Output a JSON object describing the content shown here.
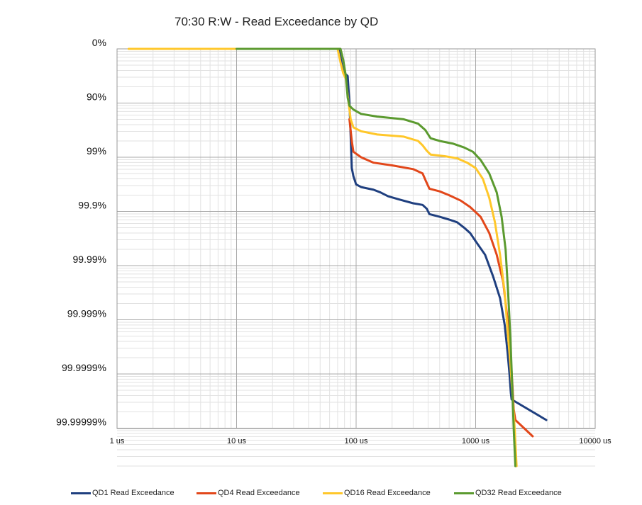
{
  "chart_data": {
    "type": "line",
    "title": "70:30 R:W - Read Exceedance by QD",
    "x_scale": "log",
    "xlim": [
      1,
      10000
    ],
    "x_ticks": [
      1,
      10,
      100,
      1000,
      10000
    ],
    "x_tick_labels": [
      "1 us",
      "10 us",
      "100 us",
      "1000 us",
      "10000 us"
    ],
    "y_scale": "nines",
    "ylim": [
      0,
      7.7
    ],
    "y_ticks": [
      0,
      1,
      2,
      3,
      4,
      5,
      6,
      7
    ],
    "y_tick_labels": [
      "0%",
      "90%",
      "99%",
      "99.9%",
      "99.99%",
      "99.999%",
      "99.9999%",
      "99.99999%"
    ],
    "grid": true,
    "legend_position": "bottom",
    "series": [
      {
        "name": "QD1 Read Exceedance",
        "color": "#1f3f7f",
        "points": [
          [
            66,
            0
          ],
          [
            72,
            0
          ],
          [
            76,
            0.3
          ],
          [
            80,
            0.45
          ],
          [
            85,
            0.5
          ],
          [
            88,
            1.0
          ],
          [
            90,
            1.6
          ],
          [
            92,
            2.2
          ],
          [
            95,
            2.35
          ],
          [
            100,
            2.5
          ],
          [
            110,
            2.55
          ],
          [
            140,
            2.6
          ],
          [
            160,
            2.65
          ],
          [
            185,
            2.72
          ],
          [
            230,
            2.78
          ],
          [
            300,
            2.85
          ],
          [
            360,
            2.88
          ],
          [
            390,
            2.95
          ],
          [
            410,
            3.05
          ],
          [
            500,
            3.1
          ],
          [
            600,
            3.15
          ],
          [
            700,
            3.2
          ],
          [
            800,
            3.3
          ],
          [
            900,
            3.4
          ],
          [
            1000,
            3.55
          ],
          [
            1200,
            3.8
          ],
          [
            1400,
            4.2
          ],
          [
            1600,
            4.6
          ],
          [
            1750,
            5.1
          ],
          [
            1850,
            5.6
          ],
          [
            1920,
            6.0
          ],
          [
            1970,
            6.35
          ],
          [
            2000,
            6.47
          ],
          [
            3900,
            6.85
          ]
        ]
      },
      {
        "name": "QD4 Read Exceedance",
        "color": "#e2471a",
        "points": [
          [
            88,
            1.3
          ],
          [
            92,
            1.7
          ],
          [
            95,
            1.9
          ],
          [
            110,
            2.0
          ],
          [
            140,
            2.1
          ],
          [
            200,
            2.15
          ],
          [
            300,
            2.22
          ],
          [
            360,
            2.3
          ],
          [
            385,
            2.45
          ],
          [
            410,
            2.58
          ],
          [
            500,
            2.63
          ],
          [
            600,
            2.7
          ],
          [
            750,
            2.8
          ],
          [
            900,
            2.92
          ],
          [
            1100,
            3.1
          ],
          [
            1300,
            3.4
          ],
          [
            1500,
            3.8
          ],
          [
            1700,
            4.3
          ],
          [
            1850,
            5.0
          ],
          [
            1950,
            5.6
          ],
          [
            2030,
            6.2
          ],
          [
            2080,
            6.65
          ],
          [
            2150,
            6.85
          ],
          [
            3000,
            7.15
          ]
        ]
      },
      {
        "name": "QD16 Read Exceedance",
        "color": "#ffc72a",
        "points": [
          [
            1.25,
            0
          ],
          [
            2,
            0
          ],
          [
            5,
            0
          ],
          [
            10,
            0
          ],
          [
            30,
            0
          ],
          [
            66,
            0
          ],
          [
            70,
            0
          ],
          [
            74,
            0.25
          ],
          [
            78,
            0.45
          ],
          [
            82,
            0.55
          ],
          [
            85,
            0.85
          ],
          [
            90,
            1.3
          ],
          [
            95,
            1.45
          ],
          [
            110,
            1.52
          ],
          [
            150,
            1.58
          ],
          [
            250,
            1.62
          ],
          [
            330,
            1.7
          ],
          [
            360,
            1.78
          ],
          [
            390,
            1.88
          ],
          [
            420,
            1.95
          ],
          [
            550,
            1.98
          ],
          [
            700,
            2.02
          ],
          [
            850,
            2.1
          ],
          [
            1000,
            2.2
          ],
          [
            1150,
            2.4
          ],
          [
            1300,
            2.75
          ],
          [
            1450,
            3.2
          ],
          [
            1600,
            3.8
          ],
          [
            1750,
            4.5
          ],
          [
            1850,
            5.2
          ],
          [
            1950,
            5.8
          ],
          [
            2050,
            6.5
          ],
          [
            2120,
            7.0
          ],
          [
            2200,
            7.7
          ]
        ]
      },
      {
        "name": "QD32 Read Exceedance",
        "color": "#5b9a2f",
        "points": [
          [
            10,
            0
          ],
          [
            30,
            0
          ],
          [
            66,
            0
          ],
          [
            74,
            0
          ],
          [
            78,
            0.2
          ],
          [
            82,
            0.5
          ],
          [
            85,
            0.9
          ],
          [
            88,
            1.05
          ],
          [
            95,
            1.12
          ],
          [
            110,
            1.2
          ],
          [
            150,
            1.25
          ],
          [
            250,
            1.3
          ],
          [
            330,
            1.38
          ],
          [
            380,
            1.5
          ],
          [
            420,
            1.65
          ],
          [
            500,
            1.7
          ],
          [
            650,
            1.75
          ],
          [
            800,
            1.82
          ],
          [
            950,
            1.9
          ],
          [
            1100,
            2.05
          ],
          [
            1300,
            2.3
          ],
          [
            1500,
            2.65
          ],
          [
            1650,
            3.1
          ],
          [
            1780,
            3.7
          ],
          [
            1870,
            4.5
          ],
          [
            1950,
            5.3
          ],
          [
            2020,
            6.2
          ],
          [
            2080,
            7.0
          ],
          [
            2150,
            7.7
          ]
        ]
      }
    ]
  }
}
